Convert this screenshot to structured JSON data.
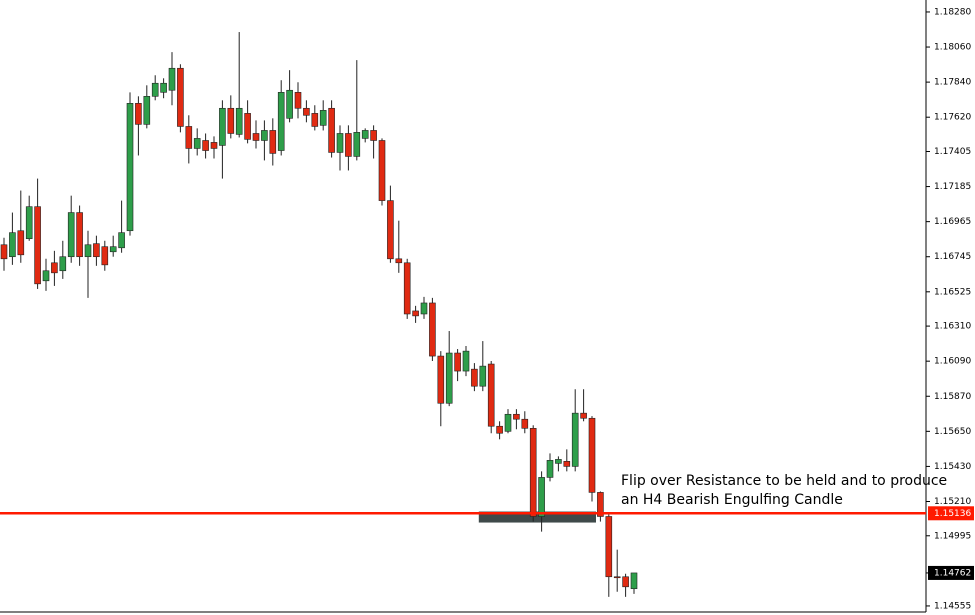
{
  "chart_data": {
    "type": "candlestick",
    "up_color": "#2e9e4a",
    "down_color": "#e02a12",
    "open": [
      1.1682,
      1.16745,
      1.16908,
      1.16858,
      1.17059,
      1.16594,
      1.16707,
      1.16657,
      1.16745,
      1.17022,
      1.16745,
      1.16827,
      1.16808,
      1.16776,
      1.16801,
      1.16908,
      1.17707,
      1.17575,
      1.17751,
      1.17776,
      1.17789,
      1.17927,
      1.17562,
      1.17424,
      1.17474,
      1.17462,
      1.17443,
      1.17676,
      1.17512,
      1.17644,
      1.17518,
      1.17474,
      1.17537,
      1.17411,
      1.17613,
      1.17776,
      1.17676,
      1.17644,
      1.17569,
      1.17676,
      1.17399,
      1.17518,
      1.17374,
      1.17487,
      1.17537,
      1.17474,
      1.17097,
      1.16732,
      1.16707,
      1.16405,
      1.16386,
      1.16455,
      1.16122,
      1.15826,
      1.16141,
      1.16028,
      1.1604,
      1.15933,
      1.16072,
      1.15682,
      1.1565,
      1.15757,
      1.15726,
      1.15669,
      1.15116,
      1.15361,
      1.15449,
      1.15462,
      1.1543,
      1.15764,
      1.15732,
      1.15267,
      1.15116,
      1.14738,
      1.14738,
      1.14663
    ],
    "high": [
      1.16864,
      1.17022,
      1.1716,
      1.17128,
      1.17235,
      1.16732,
      1.16782,
      1.16845,
      1.17128,
      1.17066,
      1.16908,
      1.16877,
      1.16845,
      1.16877,
      1.17097,
      1.17776,
      1.17751,
      1.1782,
      1.17883,
      1.17864,
      1.18028,
      1.17952,
      1.17632,
      1.1755,
      1.17518,
      1.175,
      1.17726,
      1.17757,
      1.18154,
      1.17726,
      1.176,
      1.176,
      1.17613,
      1.17852,
      1.17915,
      1.17839,
      1.17726,
      1.17695,
      1.17726,
      1.17726,
      1.17569,
      1.17569,
      1.17978,
      1.1755,
      1.17569,
      1.17487,
      1.17191,
      1.16971,
      1.16732,
      1.16437,
      1.16493,
      1.16487,
      1.16153,
      1.16279,
      1.16166,
      1.16185,
      1.16078,
      1.16216,
      1.16091,
      1.15713,
      1.15789,
      1.15789,
      1.15776,
      1.15688,
      1.15399,
      1.15512,
      1.15493,
      1.15537,
      1.15914,
      1.15914,
      1.15745,
      1.15273,
      1.15135,
      1.14908,
      1.14757,
      1.14757
    ],
    "low": [
      1.16657,
      1.16694,
      1.16707,
      1.16845,
      1.16543,
      1.16531,
      1.16562,
      1.16606,
      1.16707,
      1.16688,
      1.16487,
      1.16688,
      1.16657,
      1.16745,
      1.1677,
      1.16877,
      1.1738,
      1.1755,
      1.17726,
      1.17739,
      1.17695,
      1.17525,
      1.1733,
      1.1738,
      1.17361,
      1.17361,
      1.17235,
      1.17487,
      1.17493,
      1.17456,
      1.17424,
      1.17349,
      1.17317,
      1.1738,
      1.17588,
      1.17613,
      1.17588,
      1.17537,
      1.17537,
      1.17367,
      1.17286,
      1.17286,
      1.17349,
      1.17462,
      1.17361,
      1.17066,
      1.16707,
      1.16644,
      1.16355,
      1.1633,
      1.16355,
      1.16091,
      1.15682,
      1.15808,
      1.15965,
      1.15996,
      1.15902,
      1.15902,
      1.15638,
      1.156,
      1.15638,
      1.15663,
      1.15638,
      1.15084,
      1.15021,
      1.15336,
      1.15399,
      1.15399,
      1.15399,
      1.15713,
      1.1521,
      1.15084,
      1.14612,
      1.14644,
      1.14612,
      1.14631
    ],
    "close": [
      1.16732,
      1.16896,
      1.16757,
      1.17059,
      1.16575,
      1.16657,
      1.16644,
      1.16745,
      1.17022,
      1.16745,
      1.1682,
      1.16745,
      1.16694,
      1.16808,
      1.16896,
      1.17707,
      1.17575,
      1.17751,
      1.17833,
      1.17833,
      1.17927,
      1.17562,
      1.17424,
      1.17487,
      1.17411,
      1.17424,
      1.17676,
      1.17518,
      1.17676,
      1.17481,
      1.17474,
      1.17537,
      1.17393,
      1.17776,
      1.17789,
      1.17676,
      1.17632,
      1.17562,
      1.17663,
      1.17399,
      1.17518,
      1.17374,
      1.17525,
      1.17537,
      1.17474,
      1.17097,
      1.16732,
      1.16707,
      1.16386,
      1.16374,
      1.16455,
      1.16122,
      1.15826,
      1.16141,
      1.16028,
      1.16153,
      1.15933,
      1.16059,
      1.15682,
      1.15638,
      1.15757,
      1.15726,
      1.15669,
      1.15116,
      1.15361,
      1.15468,
      1.15474,
      1.1543,
      1.15764,
      1.15732,
      1.15267,
      1.15116,
      1.14738,
      1.14732,
      1.14675,
      1.14762
    ],
    "ylim": [
      1.14517,
      1.18355
    ],
    "yticks": [
      {
        "value": 1.1828,
        "label": "1.18280"
      },
      {
        "value": 1.1806,
        "label": "1.18060"
      },
      {
        "value": 1.1784,
        "label": "1.17840"
      },
      {
        "value": 1.1762,
        "label": "1.17620"
      },
      {
        "value": 1.17405,
        "label": "1.17405"
      },
      {
        "value": 1.17185,
        "label": "1.17185"
      },
      {
        "value": 1.16965,
        "label": "1.16965"
      },
      {
        "value": 1.16745,
        "label": "1.16745"
      },
      {
        "value": 1.16525,
        "label": "1.16525"
      },
      {
        "value": 1.1631,
        "label": "1.16310"
      },
      {
        "value": 1.1609,
        "label": "1.16090"
      },
      {
        "value": 1.1587,
        "label": "1.15870"
      },
      {
        "value": 1.1565,
        "label": "1.15650"
      },
      {
        "value": 1.1543,
        "label": "1.15430"
      },
      {
        "value": 1.1521,
        "label": "1.15210"
      },
      {
        "value": 1.14995,
        "label": "1.14995"
      },
      {
        "value": 1.14555,
        "label": "1.14555"
      }
    ],
    "level": {
      "value": 1.15136,
      "label": "1.15136",
      "color": "#ff1a00"
    },
    "current_price": {
      "value": 1.14762,
      "label": "1.14762"
    },
    "zone": {
      "from": 57,
      "to": 70,
      "low": 1.15078,
      "high": 1.15147,
      "color": "#3f4a4a"
    },
    "annotation": [
      "Flip over Resistance to be held and to produce",
      "an H4 Bearish Engulfing Candle"
    ]
  }
}
